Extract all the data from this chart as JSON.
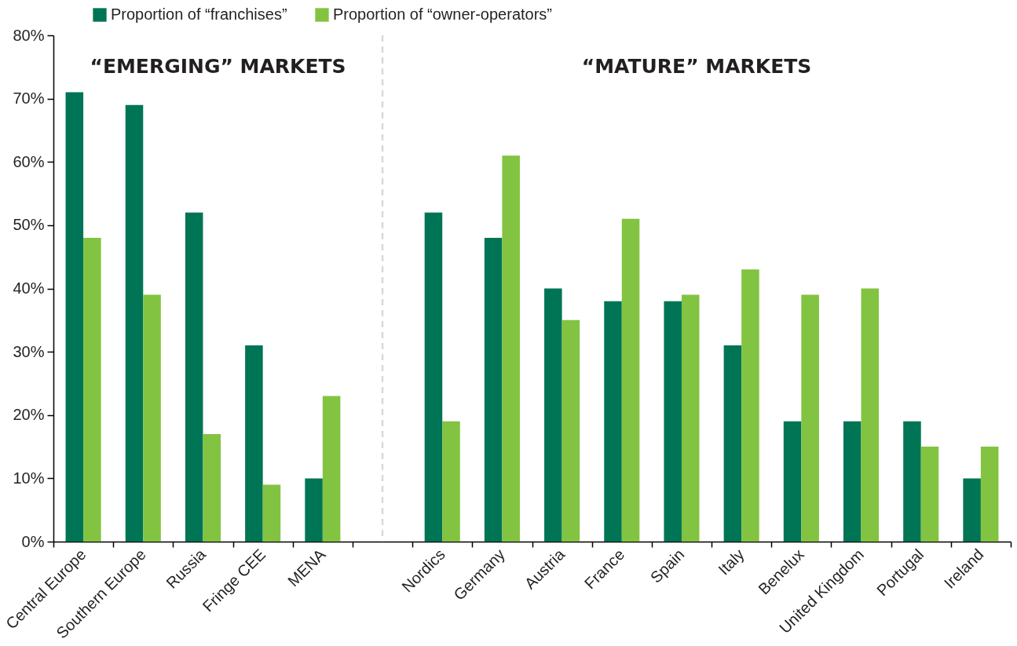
{
  "chart_data": {
    "type": "bar",
    "categories": [
      "Central Europe",
      "Southern Europe",
      "Russia",
      "Fringe CEE",
      "MENA",
      null,
      "Nordics",
      "Germany",
      "Austria",
      "France",
      "Spain",
      "Italy",
      "Benelux",
      "United Kingdom",
      "Portugal",
      "Ireland"
    ],
    "series": [
      {
        "name": "Proportion of “franchises”",
        "color": "#007555",
        "values": [
          71,
          69,
          52,
          31,
          10,
          null,
          52,
          48,
          40,
          38,
          38,
          31,
          19,
          19,
          19,
          10
        ]
      },
      {
        "name": "Proportion of “owner-operators”",
        "color": "#82c341",
        "values": [
          48,
          39,
          17,
          9,
          23,
          null,
          19,
          61,
          35,
          51,
          39,
          43,
          39,
          40,
          15,
          15
        ]
      }
    ],
    "ylim": [
      0,
      80
    ],
    "yticks": [
      {
        "value": 0,
        "label": "0%"
      },
      {
        "value": 10,
        "label": "10%"
      },
      {
        "value": 20,
        "label": "20%"
      },
      {
        "value": 30,
        "label": "30%"
      },
      {
        "value": 40,
        "label": "40%"
      },
      {
        "value": 50,
        "label": "50%"
      },
      {
        "value": 60,
        "label": "60%"
      },
      {
        "value": 70,
        "label": "70%"
      },
      {
        "value": 80,
        "label": "80%"
      }
    ],
    "legend": "top",
    "ref_lines": [
      {
        "axis": "x",
        "value": null,
        "color": "#d9d9d9",
        "line_style": "dashed"
      }
    ],
    "annotations": [
      "“EMERGING” MARKETS",
      "“MATURE” MARKETS"
    ]
  }
}
